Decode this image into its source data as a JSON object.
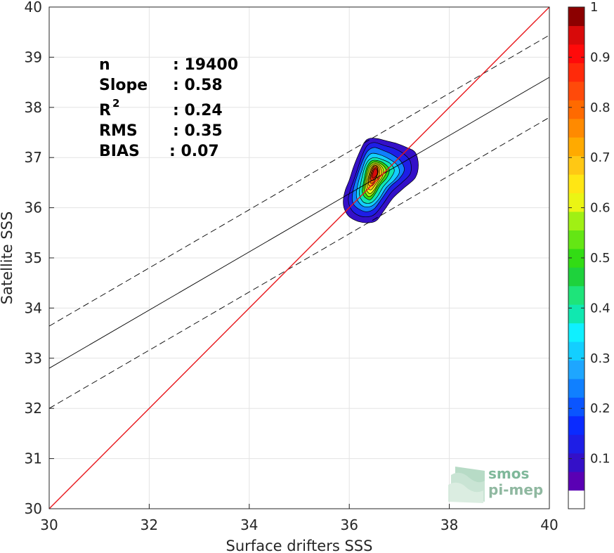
{
  "chart_data": {
    "type": "scatter",
    "subtype": "density-contour",
    "xlabel": "Surface drifters SSS",
    "ylabel": "Satellite SSS",
    "xlim": [
      30,
      40
    ],
    "ylim": [
      30,
      40
    ],
    "xticks": [
      30,
      32,
      34,
      36,
      38,
      40
    ],
    "yticks": [
      30,
      31,
      32,
      33,
      34,
      35,
      36,
      37,
      38,
      39,
      40
    ],
    "grid": true,
    "stats": {
      "n_label": "n",
      "n_value": ": 19400",
      "slope_label": "Slope",
      "slope_value": ": 0.58",
      "r2_label": "R",
      "r2_sup": "2",
      "r2_value": ": 0.24",
      "rms_label": "RMS",
      "rms_value": ": 0.35",
      "bias_label": "BIAS",
      "bias_value": ": 0.07"
    },
    "identity_line": {
      "color": "#e8161b",
      "from": [
        30,
        30
      ],
      "to": [
        40,
        40
      ]
    },
    "regression_line": {
      "slope": 0.58,
      "intercept": 15.4,
      "color": "#000000"
    },
    "confidence_lines": [
      {
        "slope": 0.58,
        "intercept": 16.24,
        "style": "dashed"
      },
      {
        "slope": 0.58,
        "intercept": 14.6,
        "style": "dashed"
      }
    ],
    "density_peak": {
      "x": 36.52,
      "y": 36.65
    },
    "colorbar": {
      "min": 0,
      "max": 1,
      "ticks": [
        "0.1",
        "0.2",
        "0.3",
        "0.4",
        "0.5",
        "0.6",
        "0.7",
        "0.8",
        "0.9",
        "1"
      ],
      "colors": [
        "#ffffff",
        "#5a00b4",
        "#3410c8",
        "#1e1ee6",
        "#0a2bff",
        "#0a55ff",
        "#1080ff",
        "#1ea6ff",
        "#13cfff",
        "#0ff0ff",
        "#10e8b0",
        "#1ee47a",
        "#1ed23c",
        "#32dc14",
        "#64e614",
        "#a0f014",
        "#ebf514",
        "#ffe614",
        "#ffc814",
        "#ffaa00",
        "#ff8a00",
        "#ff6a00",
        "#ff4a0a",
        "#ff2a0a",
        "#ff0a0a",
        "#d80a0a",
        "#8c0000"
      ]
    },
    "contour_levels": [
      {
        "level": 0.05,
        "color": "#3410c8",
        "pts": [
          [
            35.88,
            36.15
          ],
          [
            35.92,
            36.35
          ],
          [
            36.0,
            36.55
          ],
          [
            36.08,
            36.8
          ],
          [
            36.18,
            37.05
          ],
          [
            36.3,
            37.3
          ],
          [
            36.4,
            37.38
          ],
          [
            36.55,
            37.38
          ],
          [
            36.75,
            37.33
          ],
          [
            36.95,
            37.28
          ],
          [
            37.15,
            37.2
          ],
          [
            37.32,
            37.1
          ],
          [
            37.38,
            36.85
          ],
          [
            37.32,
            36.6
          ],
          [
            37.1,
            36.4
          ],
          [
            36.88,
            36.2
          ],
          [
            36.7,
            35.95
          ],
          [
            36.55,
            35.75
          ],
          [
            36.4,
            35.7
          ],
          [
            36.2,
            35.72
          ],
          [
            36.0,
            35.82
          ],
          [
            35.9,
            35.98
          ]
        ]
      },
      {
        "level": 0.15,
        "color": "#1e1ee6",
        "pts": [
          [
            35.98,
            36.15
          ],
          [
            36.02,
            36.35
          ],
          [
            36.1,
            36.58
          ],
          [
            36.18,
            36.82
          ],
          [
            36.26,
            37.05
          ],
          [
            36.36,
            37.24
          ],
          [
            36.5,
            37.3
          ],
          [
            36.7,
            37.24
          ],
          [
            36.9,
            37.18
          ],
          [
            37.08,
            37.08
          ],
          [
            37.22,
            36.92
          ],
          [
            37.22,
            36.68
          ],
          [
            37.05,
            36.5
          ],
          [
            36.85,
            36.32
          ],
          [
            36.68,
            36.08
          ],
          [
            36.52,
            35.88
          ],
          [
            36.38,
            35.82
          ],
          [
            36.2,
            35.84
          ],
          [
            36.05,
            35.95
          ]
        ]
      },
      {
        "level": 0.25,
        "color": "#1080ff",
        "pts": [
          [
            36.06,
            36.22
          ],
          [
            36.1,
            36.45
          ],
          [
            36.18,
            36.7
          ],
          [
            36.26,
            36.92
          ],
          [
            36.36,
            37.12
          ],
          [
            36.5,
            37.2
          ],
          [
            36.68,
            37.14
          ],
          [
            36.86,
            37.06
          ],
          [
            37.02,
            36.94
          ],
          [
            37.1,
            36.76
          ],
          [
            37.0,
            36.58
          ],
          [
            36.82,
            36.42
          ],
          [
            36.65,
            36.18
          ],
          [
            36.5,
            35.98
          ],
          [
            36.34,
            35.92
          ],
          [
            36.18,
            35.98
          ],
          [
            36.08,
            36.08
          ]
        ]
      },
      {
        "level": 0.35,
        "color": "#13cfff",
        "pts": [
          [
            36.14,
            36.26
          ],
          [
            36.18,
            36.5
          ],
          [
            36.25,
            36.74
          ],
          [
            36.33,
            36.96
          ],
          [
            36.44,
            37.08
          ],
          [
            36.6,
            37.06
          ],
          [
            36.78,
            36.98
          ],
          [
            36.95,
            36.86
          ],
          [
            37.0,
            36.7
          ],
          [
            36.9,
            36.55
          ],
          [
            36.74,
            36.4
          ],
          [
            36.6,
            36.18
          ],
          [
            36.46,
            36.04
          ],
          [
            36.3,
            36.02
          ],
          [
            36.18,
            36.12
          ]
        ]
      },
      {
        "level": 0.45,
        "color": "#10e8b0",
        "pts": [
          [
            36.2,
            36.32
          ],
          [
            36.24,
            36.54
          ],
          [
            36.3,
            36.78
          ],
          [
            36.38,
            36.94
          ],
          [
            36.5,
            37.0
          ],
          [
            36.66,
            36.96
          ],
          [
            36.82,
            36.88
          ],
          [
            36.9,
            36.74
          ],
          [
            36.82,
            36.58
          ],
          [
            36.68,
            36.42
          ],
          [
            36.56,
            36.22
          ],
          [
            36.44,
            36.1
          ],
          [
            36.3,
            36.1
          ],
          [
            36.22,
            36.2
          ]
        ]
      },
      {
        "level": 0.55,
        "color": "#32dc14",
        "pts": [
          [
            36.26,
            36.36
          ],
          [
            36.3,
            36.58
          ],
          [
            36.35,
            36.8
          ],
          [
            36.44,
            36.93
          ],
          [
            36.56,
            36.94
          ],
          [
            36.7,
            36.88
          ],
          [
            36.8,
            36.76
          ],
          [
            36.75,
            36.6
          ],
          [
            36.62,
            36.45
          ],
          [
            36.52,
            36.28
          ],
          [
            36.42,
            36.16
          ],
          [
            36.32,
            36.2
          ],
          [
            36.27,
            36.28
          ]
        ]
      },
      {
        "level": 0.62,
        "color": "#a0f014",
        "pts": [
          [
            36.3,
            36.4
          ],
          [
            36.33,
            36.6
          ],
          [
            36.38,
            36.8
          ],
          [
            36.47,
            36.9
          ],
          [
            36.58,
            36.9
          ],
          [
            36.7,
            36.82
          ],
          [
            36.74,
            36.7
          ],
          [
            36.66,
            36.56
          ],
          [
            36.56,
            36.42
          ],
          [
            36.48,
            36.28
          ],
          [
            36.39,
            36.22
          ],
          [
            36.32,
            36.3
          ]
        ]
      },
      {
        "level": 0.68,
        "color": "#ebf514",
        "pts": [
          [
            36.33,
            36.44
          ],
          [
            36.36,
            36.62
          ],
          [
            36.41,
            36.8
          ],
          [
            36.5,
            36.88
          ],
          [
            36.6,
            36.86
          ],
          [
            36.68,
            36.76
          ],
          [
            36.66,
            36.62
          ],
          [
            36.58,
            36.5
          ],
          [
            36.5,
            36.36
          ],
          [
            36.42,
            36.28
          ],
          [
            36.35,
            36.34
          ]
        ]
      },
      {
        "level": 0.72,
        "color": "#ffc814",
        "pts": [
          [
            36.36,
            36.46
          ],
          [
            36.39,
            36.64
          ],
          [
            36.44,
            36.8
          ],
          [
            36.52,
            36.86
          ],
          [
            36.61,
            36.82
          ],
          [
            36.65,
            36.7
          ],
          [
            36.6,
            36.58
          ],
          [
            36.52,
            36.46
          ],
          [
            36.44,
            36.36
          ],
          [
            36.38,
            36.38
          ]
        ]
      },
      {
        "level": 0.78,
        "color": "#ffaa00",
        "pts": [
          [
            36.38,
            36.5
          ],
          [
            36.41,
            36.66
          ],
          [
            36.46,
            36.8
          ],
          [
            36.53,
            36.84
          ],
          [
            36.6,
            36.78
          ],
          [
            36.6,
            36.66
          ],
          [
            36.54,
            36.54
          ],
          [
            36.46,
            36.44
          ],
          [
            36.4,
            36.44
          ]
        ]
      },
      {
        "level": 0.84,
        "color": "#ff6a00",
        "pts": [
          [
            36.41,
            36.54
          ],
          [
            36.44,
            36.7
          ],
          [
            36.49,
            36.82
          ],
          [
            36.55,
            36.82
          ],
          [
            36.58,
            36.72
          ],
          [
            36.54,
            36.6
          ],
          [
            36.48,
            36.5
          ],
          [
            36.43,
            36.49
          ]
        ]
      },
      {
        "level": 0.9,
        "color": "#ff2a0a",
        "pts": [
          [
            36.43,
            36.58
          ],
          [
            36.46,
            36.72
          ],
          [
            36.51,
            36.8
          ],
          [
            36.56,
            36.78
          ],
          [
            36.57,
            36.68
          ],
          [
            36.52,
            36.58
          ],
          [
            36.46,
            36.54
          ]
        ]
      },
      {
        "level": 0.96,
        "color": "#d80a0a",
        "pts": [
          [
            36.46,
            36.6
          ],
          [
            36.48,
            36.72
          ],
          [
            36.52,
            36.78
          ],
          [
            36.56,
            36.74
          ],
          [
            36.55,
            36.65
          ],
          [
            36.5,
            36.6
          ]
        ]
      }
    ]
  },
  "logo": {
    "line1": "smos",
    "line2": "pi-mep"
  }
}
